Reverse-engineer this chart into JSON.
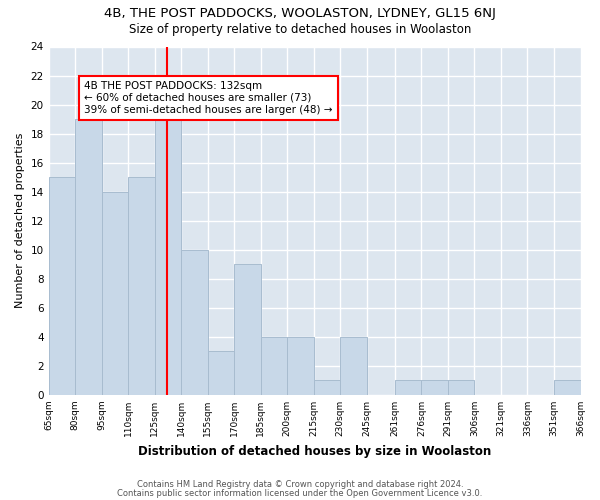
{
  "title": "4B, THE POST PADDOCKS, WOOLASTON, LYDNEY, GL15 6NJ",
  "subtitle": "Size of property relative to detached houses in Woolaston",
  "xlabel": "Distribution of detached houses by size in Woolaston",
  "ylabel": "Number of detached properties",
  "bar_color": "#c8d8e8",
  "bar_edge_color": "#a8bccf",
  "vline_x": 132,
  "vline_color": "red",
  "ylim": [
    0,
    24
  ],
  "yticks": [
    0,
    2,
    4,
    6,
    8,
    10,
    12,
    14,
    16,
    18,
    20,
    22,
    24
  ],
  "bins": [
    65,
    80,
    95,
    110,
    125,
    140,
    155,
    170,
    185,
    200,
    215,
    230,
    245,
    261,
    276,
    291,
    306,
    321,
    336,
    351,
    366
  ],
  "bin_labels": [
    "65sqm",
    "80sqm",
    "95sqm",
    "110sqm",
    "125sqm",
    "140sqm",
    "155sqm",
    "170sqm",
    "185sqm",
    "200sqm",
    "215sqm",
    "230sqm",
    "245sqm",
    "261sqm",
    "276sqm",
    "291sqm",
    "306sqm",
    "321sqm",
    "336sqm",
    "351sqm",
    "366sqm"
  ],
  "heights": [
    15,
    19,
    14,
    15,
    20,
    10,
    3,
    9,
    4,
    4,
    1,
    4,
    0,
    1,
    1,
    1,
    0,
    0,
    0,
    1
  ],
  "annotation_title": "4B THE POST PADDOCKS: 132sqm",
  "annotation_line1": "← 60% of detached houses are smaller (73)",
  "annotation_line2": "39% of semi-detached houses are larger (48) →",
  "annotation_box_color": "red",
  "footer1": "Contains HM Land Registry data © Crown copyright and database right 2024.",
  "footer2": "Contains public sector information licensed under the Open Government Licence v3.0."
}
